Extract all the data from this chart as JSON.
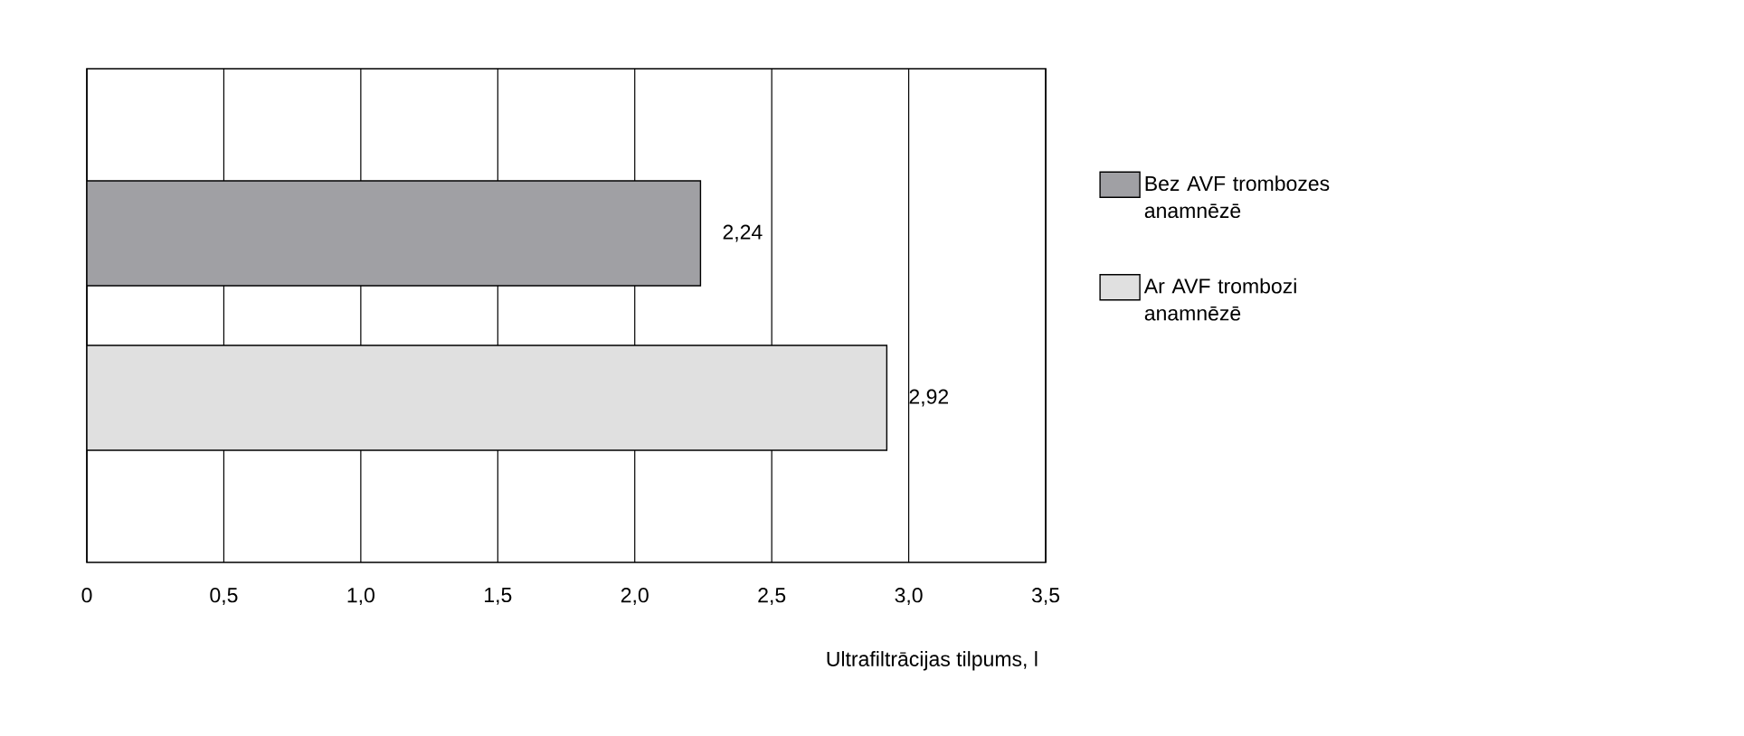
{
  "chart_data": {
    "type": "bar",
    "orientation": "horizontal",
    "xlabel": "Ultrafiltrācijas tilpums, l",
    "categories": [
      null,
      null
    ],
    "series": [
      {
        "name": "Bez AVF trombozes anamnēzē",
        "color": "#a0a0a4",
        "values": [
          2.24,
          null
        ],
        "value_labels": [
          "2,24",
          null
        ]
      },
      {
        "name": "Ar AVF trombozi anamnēzē",
        "color": "#e0e0e0",
        "values": [
          null,
          2.92
        ],
        "value_labels": [
          null,
          "2,92"
        ]
      }
    ],
    "xlim": [
      0,
      3.5
    ],
    "xticks": [
      0,
      {
        "value": 0.5,
        "label": "0,5"
      },
      {
        "value": 1.0,
        "label": "1,0"
      },
      {
        "value": 1.5,
        "label": "1,5"
      },
      {
        "value": 2.0,
        "label": "2,0"
      },
      {
        "value": 2.5,
        "label": "2,5"
      },
      {
        "value": 3.0,
        "label": "3,0"
      },
      {
        "value": 3.5,
        "label": "3,5"
      }
    ],
    "grid": "x",
    "legend": "right",
    "tick_labels": "x"
  }
}
